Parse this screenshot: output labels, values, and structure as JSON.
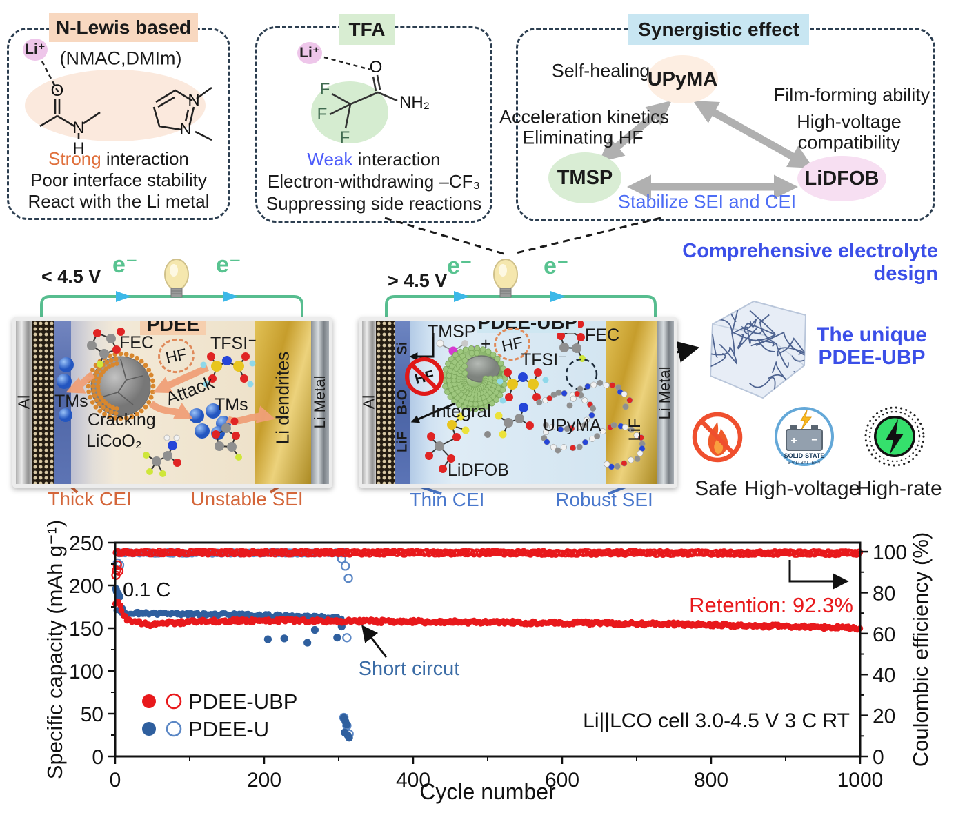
{
  "figure": {
    "top": {
      "n_lewis": {
        "title": "N-Lewis based",
        "li_ion": "Li⁺",
        "subtitle": "(NMAC,DMIm)",
        "atoms": {
          "o": "O",
          "n": "N",
          "h": "H"
        },
        "strong": "Strong",
        "strong_rest": " interaction",
        "line2": "Poor interface stability",
        "line3": "React with the Li metal"
      },
      "tfa": {
        "title": "TFA",
        "li_ion": "Li⁺",
        "atoms": {
          "o": "O",
          "f": "F",
          "nh2": "NH₂"
        },
        "weak": "Weak",
        "weak_rest": " interaction",
        "line2": "Electron-withdrawing –CF₃",
        "line3": "Suppressing side reactions"
      },
      "synergistic": {
        "title": "Synergistic effect",
        "upyma": "UPyMA",
        "tmsp": "TMSP",
        "lidfob": "LiDFOB",
        "self_healing": "Self-healing",
        "film_forming": "Film-forming ability",
        "acceleration": "Acceleration kinetics",
        "eliminating": "Eliminating HF",
        "high_voltage": "High-voltage",
        "compatibility": "compatibility",
        "stabilize": "Stabilize SEI and CEI"
      },
      "design_caption": "Comprehensive electrolyte design"
    },
    "left_cell": {
      "voltage": "< 4.5 V",
      "electron": "e⁻",
      "name": "PDEE",
      "fec": "FEC",
      "hf": "HF",
      "tfsi": "TFSI⁻",
      "tms": "TMs",
      "cracking": "Cracking",
      "licoo2": "LiCoO₂",
      "attack": "Attack",
      "tms2": "TMs",
      "al": "Al",
      "li_dendrites": "Li dendrites",
      "li_metal": "Li Metal",
      "cei": "Thick CEI",
      "sei": "Unstable SEI"
    },
    "right_cell": {
      "voltage": "> 4.5 V",
      "electron": "e⁻",
      "name": "PDEE-UBP",
      "tmsp": "TMSP",
      "plus": "+",
      "hf": "HF",
      "fec": "FEC",
      "tfsi": "TFSI⁻",
      "hf_blocked": "HF",
      "integral": "Integral",
      "upyma": "UPyMA",
      "lidfob": "LiDFOB",
      "si": "Si",
      "bo": "B-O",
      "lif": "LiF",
      "al": "Al",
      "lif_layer": "LiF",
      "li_metal": "Li Metal",
      "cei": "Thin CEI",
      "sei": "Robust SEI"
    },
    "right_panel": {
      "caption1": "The unique",
      "caption2": "PDEE-UBP",
      "safe": "Safe",
      "high_voltage": "High-voltage",
      "high_rate": "High-rate",
      "battery_icon_line1": "SOLID-STATE",
      "battery_icon_line2": "5 V Li BATTERY"
    }
  },
  "chart_data": {
    "type": "scatter",
    "xlabel": "Cycle number",
    "ylabel_left": "Specific capacity (mAh g⁻¹)",
    "ylabel_right": "Coulombic efficiency (%)",
    "xlim": [
      0,
      1000
    ],
    "ylim_left": [
      0,
      250
    ],
    "ylim_right": [
      0,
      104.4
    ],
    "x_major_ticks": [
      0,
      200,
      400,
      600,
      800,
      1000
    ],
    "x_minor_ticks": [
      100,
      300,
      500,
      700,
      900
    ],
    "y_left_major_ticks": [
      0,
      50,
      100,
      150,
      200,
      250
    ],
    "y_left_minor_ticks": [
      25,
      75,
      125,
      175,
      225
    ],
    "y_right_major_ticks": [
      0,
      20,
      40,
      60,
      80,
      100
    ],
    "y_right_minor_ticks": [
      10,
      30,
      50,
      70,
      90
    ],
    "grid": false,
    "legend_position": "inside-left-bottom",
    "annotations": {
      "rate": "0.1 C",
      "short_circuit": "Short circut",
      "retention": "Retention: 92.3%",
      "cell_info": "Li||LCO cell 3.0-4.5 V 3 C RT"
    },
    "colors": {
      "red": "#e8191c",
      "blue_filled": "#2f5f9e",
      "blue_open": "#5b87c5",
      "axis": "#111111",
      "annotation_blue": "#3a6ba5"
    },
    "legend": [
      {
        "label": "PDEE-UBP",
        "filled_color": "#e8191c",
        "open_color": "#e8191c"
      },
      {
        "label": "PDEE-U",
        "filled_color": "#2f5f9e",
        "open_color": "#5b87c5"
      }
    ],
    "series": [
      {
        "name": "PDEE-U coulombic efficiency",
        "axis": "right",
        "marker": "open",
        "color": "#5b87c5",
        "band": {
          "range": [
            2,
            308
          ],
          "step": 2,
          "jitter": 0.5,
          "anchors": [
            [
              2,
              99.4
            ],
            [
              308,
              99.4
            ]
          ]
        },
        "points": [
          [
            3,
            94.5
          ],
          [
            6,
            93.5
          ],
          [
            304,
            96.5
          ],
          [
            309,
            93
          ],
          [
            313,
            87
          ],
          [
            311,
            58
          ],
          [
            307,
            19
          ],
          [
            311,
            15
          ],
          [
            314,
            11
          ]
        ]
      },
      {
        "name": "PDEE-U capacity",
        "axis": "left",
        "marker": "filled",
        "color": "#2f5f9e",
        "band": {
          "range": [
            2,
            304
          ],
          "step": 2,
          "jitter": 1.6,
          "anchors": [
            [
              2,
              171
            ],
            [
              12,
              168
            ],
            [
              60,
              167
            ],
            [
              150,
              166
            ],
            [
              250,
              164
            ],
            [
              304,
              162
            ]
          ]
        },
        "points": [
          [
            1,
            196
          ],
          [
            2,
            193
          ],
          [
            4,
            190
          ],
          [
            6,
            187
          ],
          [
            9,
            173
          ],
          [
            205,
            137
          ],
          [
            227,
            138
          ],
          [
            258,
            133
          ],
          [
            268,
            148
          ],
          [
            298,
            139
          ],
          [
            304,
            152
          ],
          [
            307,
            45
          ],
          [
            309,
            41
          ],
          [
            311,
            37
          ],
          [
            308,
            28
          ],
          [
            312,
            25
          ],
          [
            314,
            22
          ]
        ]
      },
      {
        "name": "PDEE-UBP coulombic efficiency",
        "axis": "right",
        "marker": "open",
        "color": "#e8191c",
        "band": {
          "range": [
            1,
            1000
          ],
          "step": 2,
          "jitter": 0.55,
          "anchors": [
            [
              1,
              99.6
            ],
            [
              1000,
              99.3
            ]
          ]
        },
        "points": [
          [
            1,
            88.5
          ],
          [
            2,
            91
          ],
          [
            3,
            93.5
          ],
          [
            5,
            90.5
          ]
        ]
      },
      {
        "name": "PDEE-UBP capacity",
        "axis": "left",
        "marker": "filled",
        "color": "#e8191c",
        "band": {
          "range": [
            1,
            1000
          ],
          "step": 2,
          "jitter": 2.0,
          "anchors": [
            [
              1,
              177
            ],
            [
              3,
              182
            ],
            [
              6,
              180
            ],
            [
              9,
              170
            ],
            [
              14,
              161
            ],
            [
              30,
              157
            ],
            [
              45,
              154
            ],
            [
              70,
              156
            ],
            [
              120,
              158
            ],
            [
              200,
              159
            ],
            [
              350,
              158
            ],
            [
              500,
              157
            ],
            [
              650,
              156
            ],
            [
              800,
              154
            ],
            [
              900,
              152
            ],
            [
              1000,
              150
            ]
          ]
        },
        "points": []
      }
    ]
  }
}
